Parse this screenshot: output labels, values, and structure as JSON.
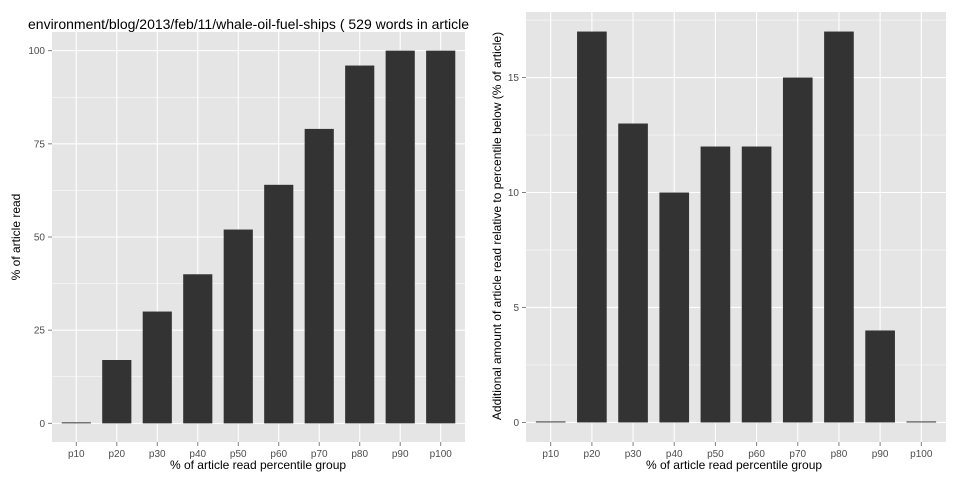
{
  "chart_data": [
    {
      "type": "bar",
      "title": "environment/blog/2013/feb/11/whale-oil-fuel-ships ( 529 words in article",
      "xlabel": "% of article read percentile group",
      "ylabel": "% of article read",
      "categories": [
        "p10",
        "p20",
        "p30",
        "p40",
        "p50",
        "p60",
        "p70",
        "p80",
        "p90",
        "p100"
      ],
      "values": [
        0,
        17,
        30,
        40,
        52,
        64,
        79,
        96,
        100,
        100
      ],
      "yticks": [
        0,
        25,
        50,
        75,
        100
      ],
      "ylim": [
        -5,
        105
      ],
      "grid": true,
      "colors": {
        "bar": "#333333",
        "panel": "#e5e5e5",
        "grid": "#ffffff"
      }
    },
    {
      "type": "bar",
      "title": "",
      "xlabel": "% of article read percentile group",
      "ylabel": "Additional amount of article read relative to percentile below (% of article)",
      "categories": [
        "p10",
        "p20",
        "p30",
        "p40",
        "p50",
        "p60",
        "p70",
        "p80",
        "p90",
        "p100"
      ],
      "values": [
        0,
        17,
        13,
        10,
        12,
        12,
        15,
        17,
        4,
        0
      ],
      "yticks": [
        0,
        5,
        10,
        15
      ],
      "ylim": [
        -0.85,
        17.85
      ],
      "grid": true,
      "colors": {
        "bar": "#333333",
        "panel": "#e5e5e5",
        "grid": "#ffffff"
      }
    }
  ]
}
